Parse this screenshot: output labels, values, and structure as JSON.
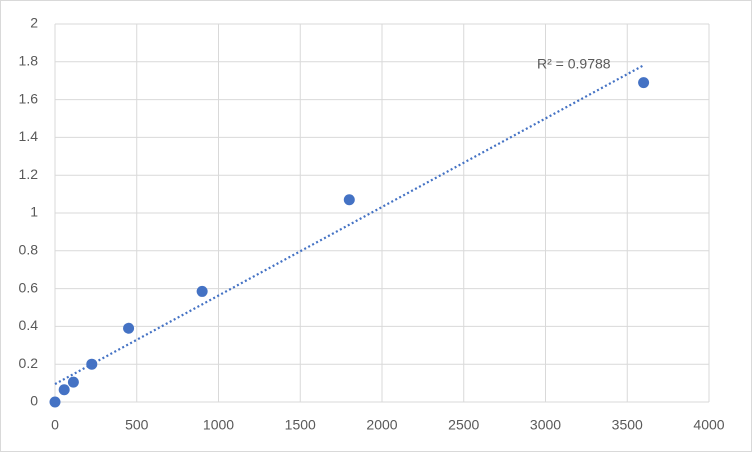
{
  "chart_data": {
    "type": "scatter",
    "x": [
      0,
      56.25,
      112.5,
      225,
      450,
      900,
      1800,
      3600
    ],
    "values": [
      0,
      0.065,
      0.105,
      0.2,
      0.39,
      0.585,
      1.07,
      1.69
    ],
    "color": "#4472c4",
    "xlim": [
      0,
      4000
    ],
    "xticks": [
      0,
      500,
      1000,
      1500,
      2000,
      2500,
      3000,
      3500,
      4000
    ],
    "ylim": [
      0,
      2
    ],
    "yticks": [
      0,
      0.2,
      0.4,
      0.6,
      0.8,
      1,
      1.2,
      1.4,
      1.6,
      1.8,
      2
    ],
    "grid": true,
    "trendline": "linear",
    "annotation": "R² = 0.9788"
  }
}
